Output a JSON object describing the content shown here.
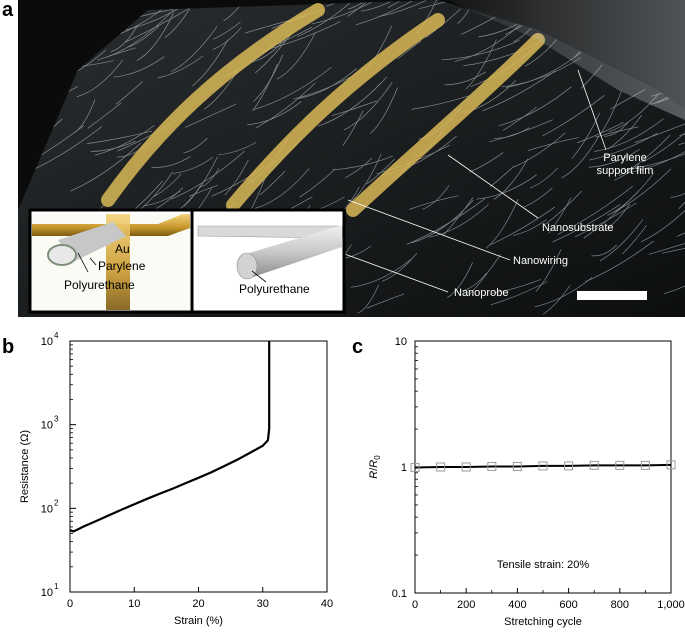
{
  "figure": {
    "panels": [
      {
        "letter": "a"
      },
      {
        "letter": "b"
      },
      {
        "letter": "c"
      }
    ]
  },
  "photo_panel": {
    "callouts": {
      "parylene_support_line1": "Parylene",
      "parylene_support_line2": "support film",
      "nanosubstrate": "Nanosubstrate",
      "nanowiring": "Nanowiring",
      "nanoprobe": "Nanoprobe"
    },
    "inset_left": {
      "au": "Au",
      "parylene": "Parylene",
      "polyurethane": "Polyurethane"
    },
    "inset_right": {
      "polyurethane": "Polyurethane"
    },
    "colors": {
      "background": "#1a1d1e",
      "fibers": "#d8dfe2",
      "gold_wiring": "#d9b857",
      "support_film": "#cfd8e0",
      "scale_bar": "#ffffff"
    }
  },
  "chart_data": [
    {
      "type": "line",
      "panel": "b",
      "xlabel": "Strain (%)",
      "ylabel": "Resistance (Ω)",
      "xlim": [
        0,
        40
      ],
      "ylim": [
        10,
        10000
      ],
      "yscale": "log",
      "x_ticks": [
        0,
        10,
        20,
        30,
        40
      ],
      "y_ticks": [
        {
          "base": "10",
          "exp": "1",
          "value": 10
        },
        {
          "base": "10",
          "exp": "2",
          "value": 100
        },
        {
          "base": "10",
          "exp": "3",
          "value": 1000
        },
        {
          "base": "10",
          "exp": "4",
          "value": 10000
        }
      ],
      "grid": false,
      "series": [
        {
          "x": [
            0,
            0.5,
            1,
            2,
            4,
            6,
            8,
            10,
            12,
            14,
            16,
            18,
            20,
            22,
            24,
            26,
            28,
            30,
            30.8,
            30.9,
            31.0,
            31.0
          ],
          "y": [
            55,
            53,
            55,
            60,
            70,
            82,
            96,
            112,
            130,
            150,
            172,
            200,
            232,
            270,
            320,
            380,
            460,
            560,
            650,
            750,
            900,
            10000
          ]
        }
      ]
    },
    {
      "type": "scatter",
      "panel": "c",
      "xlabel": "Stretching cycle",
      "ylabel_base": "R",
      "ylabel_sep": "/",
      "ylabel_sub": "0",
      "xlim": [
        0,
        1000
      ],
      "ylim": [
        0.1,
        10
      ],
      "yscale": "log",
      "x_ticks": [
        "0",
        "200",
        "400",
        "600",
        "800",
        "1,000"
      ],
      "y_ticks": [
        "0.1",
        "1",
        "10"
      ],
      "annotation": "Tensile strain: 20%",
      "grid": false,
      "series": [
        {
          "marker": "open-square",
          "x": [
            0,
            100,
            200,
            300,
            400,
            500,
            600,
            700,
            800,
            900,
            1000
          ],
          "y": [
            0.99,
            1.0,
            1.0,
            1.01,
            1.01,
            1.02,
            1.02,
            1.03,
            1.03,
            1.03,
            1.04
          ]
        }
      ]
    }
  ]
}
